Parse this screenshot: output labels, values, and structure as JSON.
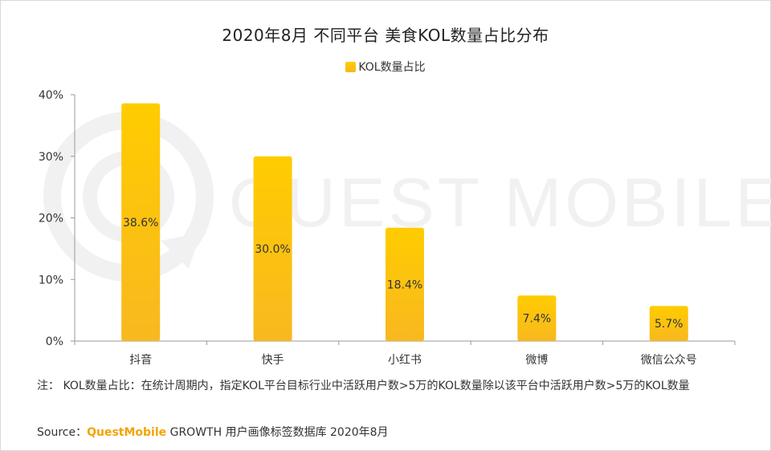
{
  "chart_data": {
    "type": "bar",
    "title": "2020年8月 不同平台 美食KOL数量占比分布",
    "categories": [
      "抖音",
      "快手",
      "小红书",
      "微博",
      "微信公众号"
    ],
    "series": [
      {
        "name": "KOL数量占比",
        "values": [
          38.6,
          30.0,
          18.4,
          7.4,
          5.7
        ],
        "color": "#ffc000"
      }
    ],
    "data_labels": [
      "38.6%",
      "30.0%",
      "18.4%",
      "7.4%",
      "5.7%"
    ],
    "yticks": [
      0,
      10,
      20,
      30,
      40
    ],
    "ytick_labels": [
      "0%",
      "10%",
      "20%",
      "30%",
      "40%"
    ],
    "ylim": [
      0,
      40
    ],
    "legend_position": "top-center",
    "grid": false
  },
  "note": {
    "text": "注： KOL数量占比：在统计周期内，指定KOL平台目标行业中活跃用户数>5万的KOL数量除以该平台中活跃用户数>5万的KOL数量"
  },
  "source": {
    "label": "Source：",
    "brand": "QuestMobile",
    "rest": " GROWTH 用户画像标签数据库 2020年8月"
  },
  "watermark": {
    "text": "QUEST MOBILE"
  },
  "colors": {
    "bar_top": "#ffcc00",
    "bar_bottom": "#f8b820",
    "axis": "#999999",
    "watermark": "#f1f1f1"
  }
}
